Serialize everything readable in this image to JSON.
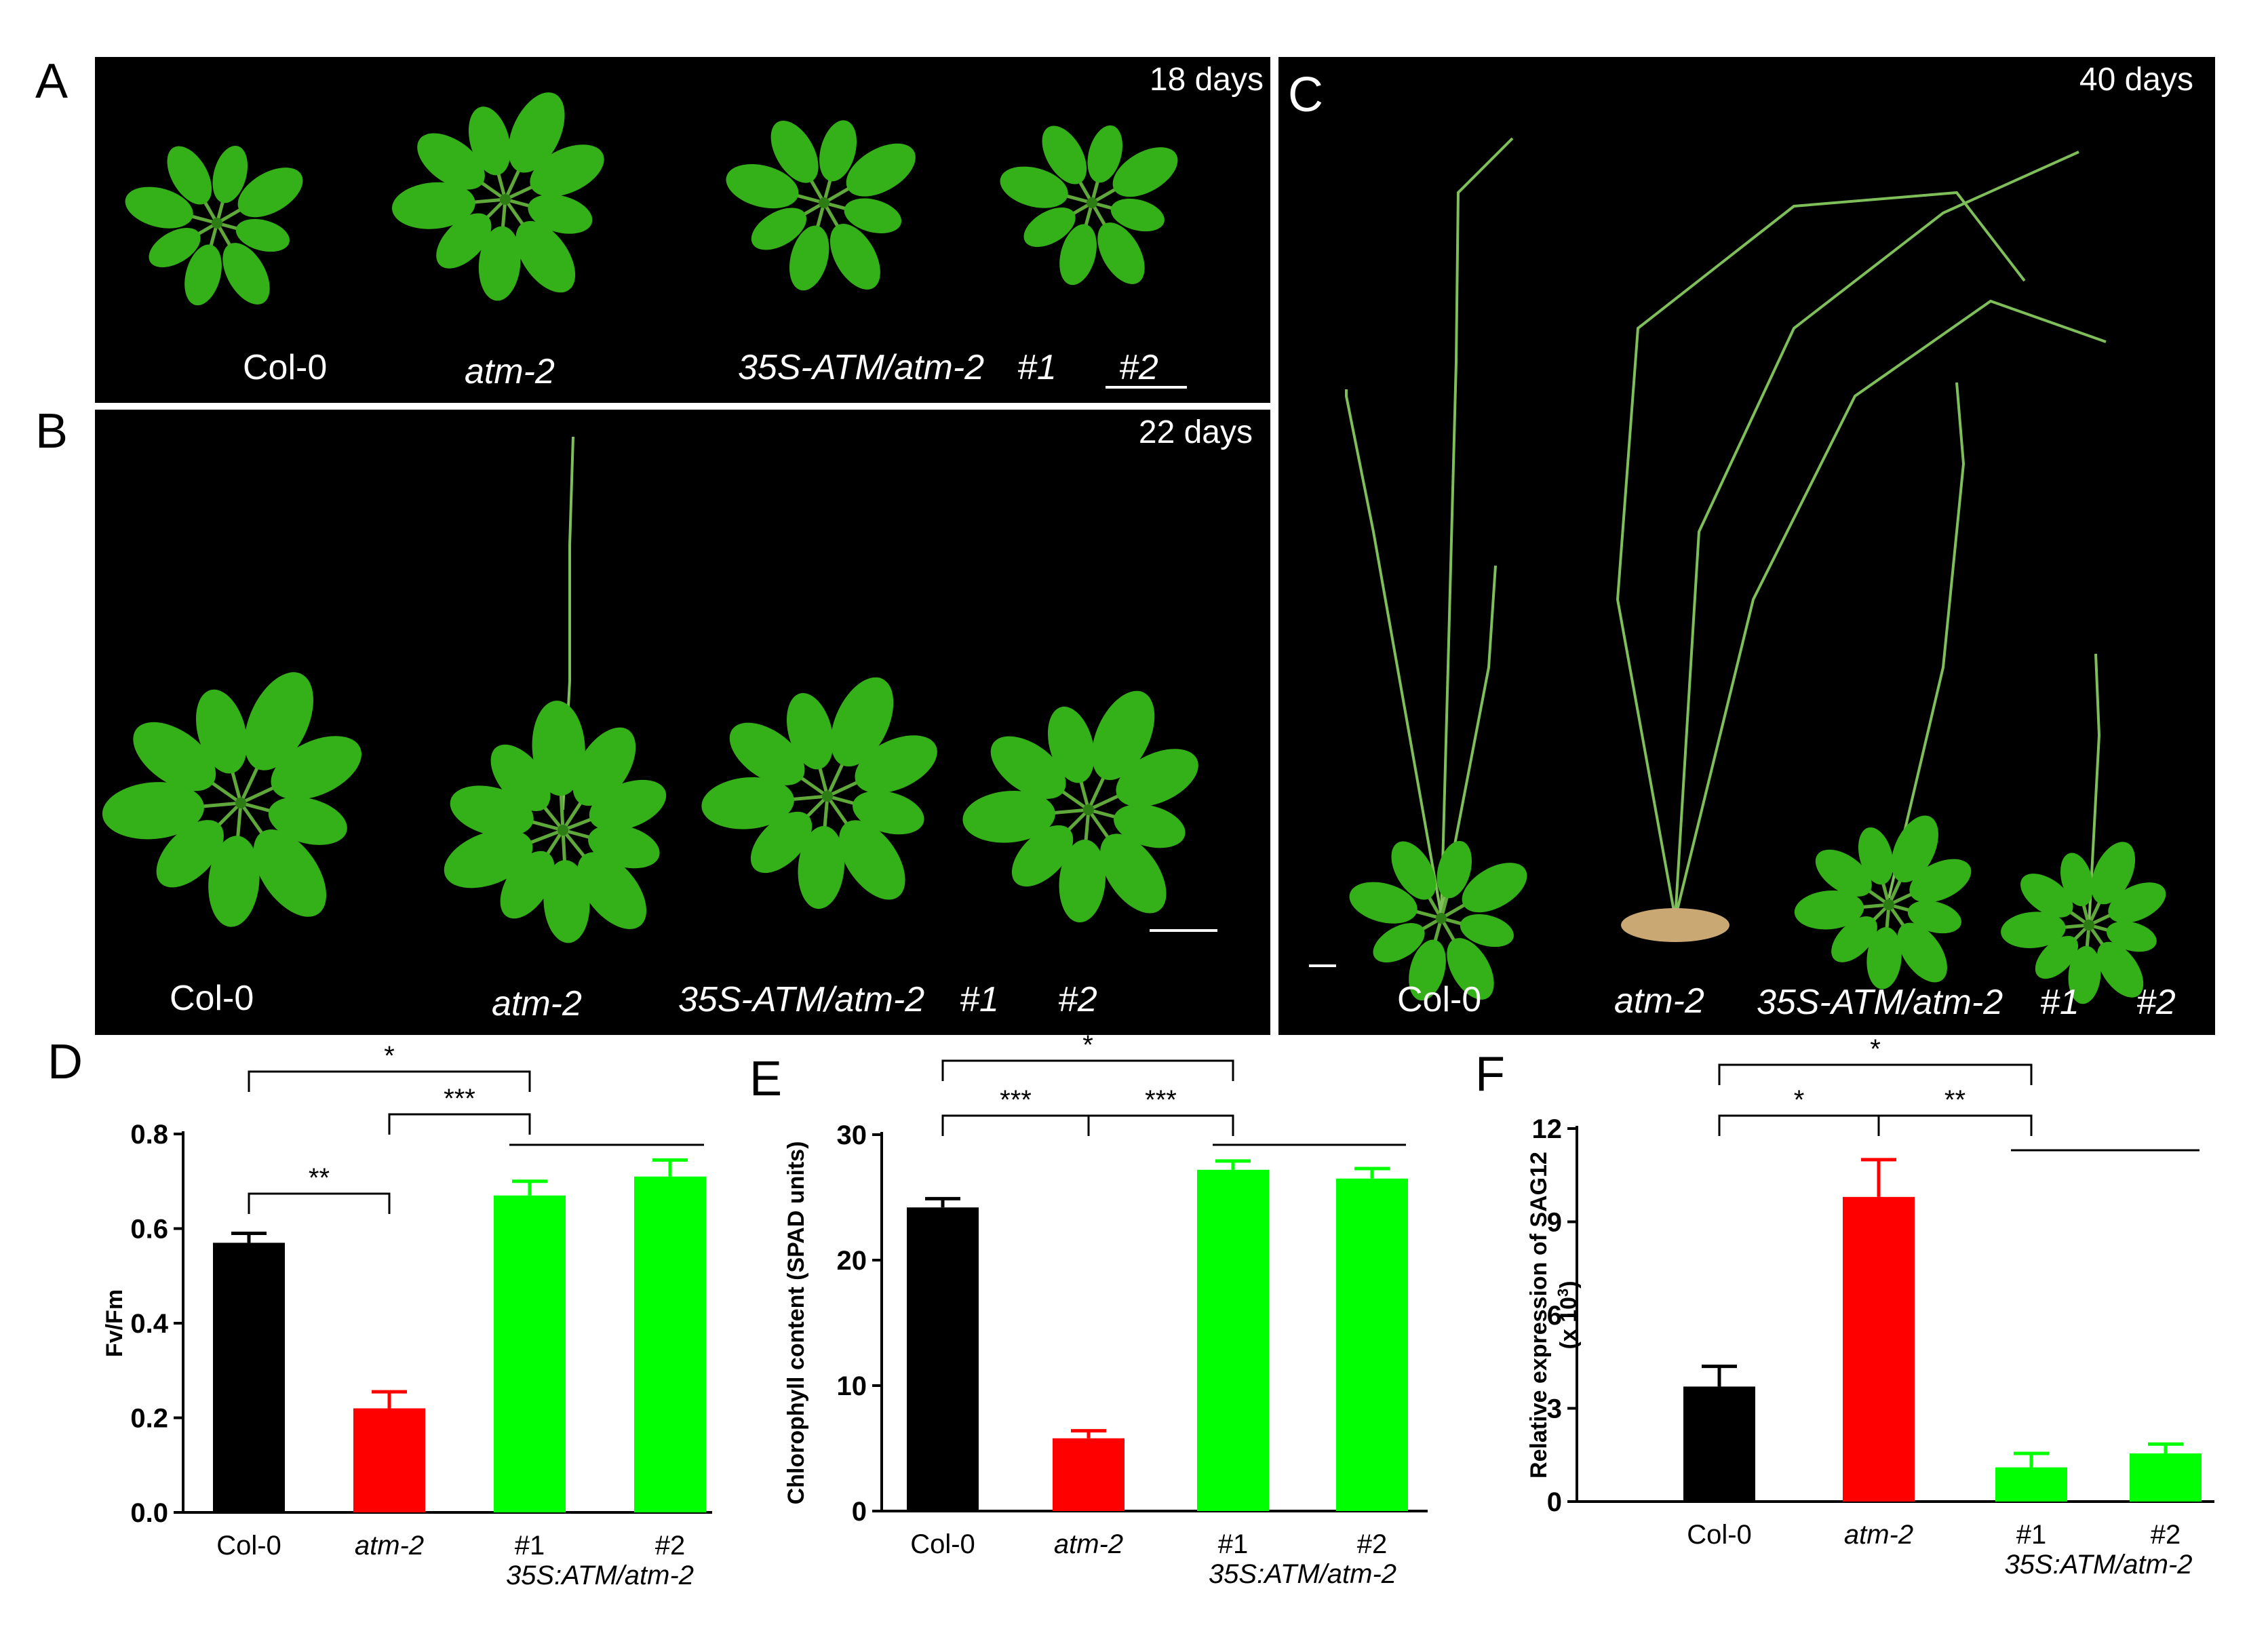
{
  "panels": {
    "a": {
      "letter": "A",
      "days": "18 days",
      "labels": [
        "Col-0",
        "atm-2",
        "35S-ATM/atm-2",
        "#1",
        "#2"
      ]
    },
    "b": {
      "letter": "B",
      "days": "22 days",
      "labels": [
        "Col-0",
        "atm-2",
        "35S-ATM/atm-2",
        "#1",
        "#2"
      ]
    },
    "c": {
      "letter": "C",
      "days": "40 days",
      "labels": [
        "Col-0",
        "atm-2",
        "35S-ATM/atm-2",
        "#1",
        "#2"
      ]
    }
  },
  "colors": {
    "col0": "#000000",
    "atm2": "#ff0000",
    "line1": "#00ff00",
    "line2": "#00ff00",
    "leaf": "#34b018"
  },
  "chart_data": [
    {
      "panel": "D",
      "type": "bar",
      "categories": [
        "Col-0",
        "atm-2",
        "#1",
        "#2"
      ],
      "category_italic": [
        false,
        true,
        false,
        false
      ],
      "group_label": "35S:ATM/atm-2",
      "values": [
        0.57,
        0.22,
        0.67,
        0.71
      ],
      "errors": [
        0.02,
        0.035,
        0.03,
        0.035
      ],
      "bar_colors": [
        "#000000",
        "#ff0000",
        "#00ff00",
        "#00ff00"
      ],
      "xlabel": "",
      "ylabel": "Fv/Fm",
      "ylim": [
        0,
        0.8
      ],
      "yticks": [
        "0.0",
        "0.2",
        "0.4",
        "0.6",
        "0.8"
      ],
      "significance": [
        {
          "from": 0,
          "to": 2,
          "label": "*",
          "level": 3
        },
        {
          "from": 1,
          "to": 2,
          "label": "***",
          "level": 2
        },
        {
          "from": 0,
          "to": 1,
          "label": "**",
          "level": 1
        }
      ],
      "group_line": [
        2,
        3
      ]
    },
    {
      "panel": "E",
      "type": "bar",
      "categories": [
        "Col-0",
        "atm-2",
        "#1",
        "#2"
      ],
      "category_italic": [
        false,
        true,
        false,
        false
      ],
      "group_label": "35S:ATM/atm-2",
      "values": [
        24.2,
        5.8,
        27.2,
        26.5
      ],
      "errors": [
        0.7,
        0.6,
        0.7,
        0.8
      ],
      "bar_colors": [
        "#000000",
        "#ff0000",
        "#00ff00",
        "#00ff00"
      ],
      "xlabel": "",
      "ylabel": "Chlorophyll content (SPAD units)",
      "ylim": [
        0,
        30
      ],
      "yticks": [
        "0",
        "10",
        "20",
        "30"
      ],
      "significance": [
        {
          "from": 0,
          "to": 2,
          "label": "*",
          "level": 2
        },
        {
          "from": 0,
          "to": 1,
          "label": "***",
          "level": 1
        },
        {
          "from": 1,
          "to": 2,
          "label": "***",
          "level": 1
        }
      ],
      "group_line": [
        2,
        3
      ]
    },
    {
      "panel": "F",
      "type": "bar",
      "categories": [
        "Col-0",
        "atm-2",
        "#1",
        "#2"
      ],
      "category_italic": [
        false,
        true,
        false,
        false
      ],
      "group_label": "35S:ATM/atm-2",
      "values": [
        3.7,
        9.8,
        1.1,
        1.55
      ],
      "errors": [
        0.65,
        1.2,
        0.45,
        0.3
      ],
      "bar_colors": [
        "#000000",
        "#ff0000",
        "#00ff00",
        "#00ff00"
      ],
      "xlabel": "",
      "ylabel": "Relative expression of SAG12",
      "ylabel2": "(x 10",
      "ylabel2_sup": "3",
      "ylabel2_end": ")",
      "ylim": [
        0,
        12
      ],
      "yticks": [
        "0",
        "3",
        "6",
        "9",
        "12"
      ],
      "significance": [
        {
          "from": 0,
          "to": 2,
          "label": "*",
          "level": 2
        },
        {
          "from": 0,
          "to": 1,
          "label": "*",
          "level": 1
        },
        {
          "from": 1,
          "to": 2,
          "label": "**",
          "level": 1
        }
      ],
      "group_line": [
        2,
        3
      ]
    }
  ]
}
